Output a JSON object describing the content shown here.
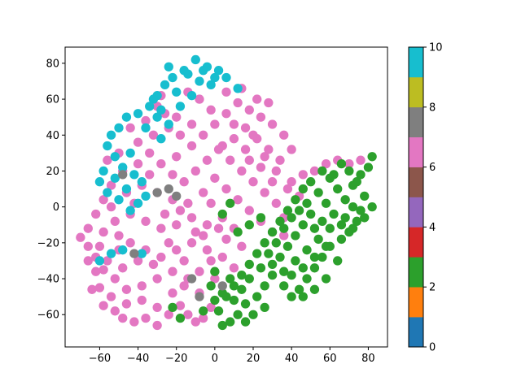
{
  "chart_data": {
    "type": "scatter",
    "title": "",
    "xlabel": "",
    "ylabel": "",
    "xlim": [
      -78,
      90
    ],
    "ylim": [
      -78,
      89
    ],
    "xticks": [
      -60,
      -40,
      -20,
      0,
      20,
      40,
      60,
      80
    ],
    "yticks": [
      -60,
      -40,
      -20,
      0,
      20,
      40,
      60,
      80
    ],
    "grid": false,
    "marker_size_data_units": 2.4,
    "colorbar": {
      "cmap": "tab10",
      "vmin": 0,
      "vmax": 10,
      "ticks": [
        0,
        2,
        4,
        6,
        8,
        10
      ],
      "colors": [
        "#1f77b4",
        "#ff7f0e",
        "#2ca02c",
        "#d62728",
        "#9467bd",
        "#8c564b",
        "#e377c2",
        "#7f7f7f",
        "#bcbd22",
        "#17becf"
      ]
    },
    "series": [
      {
        "class": 6,
        "color": "#e377c2",
        "points": [
          [
            -70,
            -17
          ],
          [
            -66,
            -22
          ],
          [
            -62,
            -28
          ],
          [
            -58,
            -35
          ],
          [
            -60,
            -45
          ],
          [
            -58,
            -55
          ],
          [
            -52,
            -58
          ],
          [
            -48,
            -62
          ],
          [
            -42,
            -64
          ],
          [
            -36,
            -62
          ],
          [
            -30,
            -66
          ],
          [
            -24,
            -60
          ],
          [
            -18,
            -55
          ],
          [
            -14,
            -60
          ],
          [
            -10,
            -64
          ],
          [
            -6,
            -62
          ],
          [
            -2,
            -56
          ],
          [
            -8,
            -48
          ],
          [
            -14,
            -40
          ],
          [
            -22,
            -36
          ],
          [
            -30,
            -40
          ],
          [
            -38,
            -44
          ],
          [
            -46,
            -46
          ],
          [
            -52,
            -40
          ],
          [
            -56,
            -30
          ],
          [
            -50,
            -24
          ],
          [
            -44,
            -20
          ],
          [
            -36,
            -24
          ],
          [
            -28,
            -28
          ],
          [
            -20,
            -24
          ],
          [
            -12,
            -20
          ],
          [
            -4,
            -24
          ],
          [
            4,
            -28
          ],
          [
            10,
            -34
          ],
          [
            14,
            -22
          ],
          [
            10,
            -12
          ],
          [
            4,
            -6
          ],
          [
            -4,
            -10
          ],
          [
            -12,
            -6
          ],
          [
            -20,
            -10
          ],
          [
            -28,
            -12
          ],
          [
            -36,
            -8
          ],
          [
            -44,
            -4
          ],
          [
            -52,
            -8
          ],
          [
            -58,
            -14
          ],
          [
            -62,
            -4
          ],
          [
            -58,
            4
          ],
          [
            -54,
            12
          ],
          [
            -48,
            20
          ],
          [
            -40,
            24
          ],
          [
            -34,
            30
          ],
          [
            -28,
            24
          ],
          [
            -22,
            18
          ],
          [
            -16,
            14
          ],
          [
            -10,
            20
          ],
          [
            -4,
            26
          ],
          [
            2,
            32
          ],
          [
            8,
            26
          ],
          [
            14,
            20
          ],
          [
            20,
            14
          ],
          [
            26,
            8
          ],
          [
            32,
            2
          ],
          [
            36,
            -6
          ],
          [
            30,
            -14
          ],
          [
            24,
            -8
          ],
          [
            18,
            -2
          ],
          [
            12,
            4
          ],
          [
            6,
            10
          ],
          [
            0,
            16
          ],
          [
            -6,
            8
          ],
          [
            -14,
            2
          ],
          [
            -22,
            4
          ],
          [
            -30,
            8
          ],
          [
            -38,
            12
          ],
          [
            -46,
            8
          ],
          [
            -54,
            0
          ],
          [
            -40,
            36
          ],
          [
            -32,
            40
          ],
          [
            -24,
            44
          ],
          [
            -18,
            40
          ],
          [
            -12,
            34
          ],
          [
            -6,
            40
          ],
          [
            0,
            46
          ],
          [
            6,
            52
          ],
          [
            12,
            58
          ],
          [
            18,
            54
          ],
          [
            24,
            50
          ],
          [
            30,
            46
          ],
          [
            36,
            40
          ],
          [
            40,
            32
          ],
          [
            34,
            26
          ],
          [
            28,
            32
          ],
          [
            22,
            38
          ],
          [
            16,
            44
          ],
          [
            10,
            38
          ],
          [
            4,
            34
          ],
          [
            -2,
            54
          ],
          [
            -8,
            60
          ],
          [
            -14,
            64
          ],
          [
            6,
            64
          ],
          [
            14,
            66
          ],
          [
            22,
            60
          ],
          [
            28,
            58
          ],
          [
            -20,
            50
          ],
          [
            -26,
            52
          ],
          [
            -30,
            56
          ],
          [
            -36,
            48
          ],
          [
            -44,
            44
          ],
          [
            -50,
            30
          ],
          [
            -56,
            26
          ],
          [
            40,
            14
          ],
          [
            46,
            18
          ],
          [
            52,
            20
          ],
          [
            58,
            24
          ],
          [
            64,
            26
          ],
          [
            70,
            24
          ],
          [
            76,
            26
          ],
          [
            44,
            6
          ],
          [
            38,
            10
          ],
          [
            30,
            14
          ],
          [
            24,
            22
          ],
          [
            18,
            26
          ],
          [
            -62,
            -36
          ],
          [
            -64,
            -46
          ],
          [
            -54,
            -50
          ],
          [
            -46,
            -54
          ],
          [
            -38,
            -52
          ],
          [
            -30,
            -56
          ],
          [
            -22,
            -48
          ],
          [
            -16,
            -44
          ],
          [
            -8,
            -36
          ],
          [
            0,
            -40
          ],
          [
            -2,
            -30
          ],
          [
            6,
            -18
          ],
          [
            -66,
            -12
          ],
          [
            -48,
            -34
          ],
          [
            -40,
            -30
          ],
          [
            -32,
            -32
          ],
          [
            -26,
            -4
          ],
          [
            -18,
            -2
          ],
          [
            -10,
            -14
          ],
          [
            -2,
            2
          ],
          [
            10,
            46
          ],
          [
            16,
            32
          ],
          [
            -34,
            18
          ],
          [
            -42,
            2
          ],
          [
            -50,
            -16
          ],
          [
            -24,
            -20
          ],
          [
            -16,
            -30
          ],
          [
            -6,
            -16
          ],
          [
            2,
            -12
          ],
          [
            -20,
            28
          ],
          [
            -12,
            46
          ],
          [
            -28,
            62
          ],
          [
            20,
            40
          ],
          [
            26,
            28
          ],
          [
            32,
            20
          ],
          [
            36,
            -16
          ],
          [
            -66,
            -30
          ],
          [
            -60,
            -22
          ]
        ]
      },
      {
        "class": 9,
        "color": "#17becf",
        "points": [
          [
            -10,
            82
          ],
          [
            -4,
            78
          ],
          [
            2,
            76
          ],
          [
            -16,
            76
          ],
          [
            -22,
            72
          ],
          [
            -26,
            68
          ],
          [
            -30,
            62
          ],
          [
            -34,
            56
          ],
          [
            -40,
            52
          ],
          [
            -46,
            50
          ],
          [
            -50,
            44
          ],
          [
            -54,
            40
          ],
          [
            -56,
            34
          ],
          [
            -52,
            28
          ],
          [
            -48,
            22
          ],
          [
            -42,
            18
          ],
          [
            -38,
            14
          ],
          [
            -36,
            6
          ],
          [
            -40,
            2
          ],
          [
            -44,
            -2
          ],
          [
            -50,
            4
          ],
          [
            -56,
            8
          ],
          [
            -60,
            14
          ],
          [
            -58,
            20
          ],
          [
            -30,
            50
          ],
          [
            -24,
            46
          ],
          [
            -18,
            56
          ],
          [
            -12,
            62
          ],
          [
            -8,
            70
          ],
          [
            -2,
            68
          ],
          [
            6,
            72
          ],
          [
            12,
            66
          ],
          [
            -20,
            64
          ],
          [
            -28,
            54
          ],
          [
            -36,
            44
          ],
          [
            -44,
            30
          ],
          [
            -52,
            16
          ],
          [
            -46,
            10
          ],
          [
            -28,
            38
          ],
          [
            -14,
            74
          ],
          [
            -6,
            76
          ],
          [
            -24,
            78
          ],
          [
            0,
            72
          ],
          [
            -32,
            60
          ],
          [
            -48,
            -24
          ],
          [
            -38,
            -26
          ],
          [
            -60,
            -30
          ],
          [
            -54,
            -26
          ]
        ]
      },
      {
        "class": 2,
        "color": "#2ca02c",
        "points": [
          [
            82,
            28
          ],
          [
            80,
            22
          ],
          [
            76,
            18
          ],
          [
            72,
            12
          ],
          [
            78,
            6
          ],
          [
            82,
            0
          ],
          [
            78,
            -6
          ],
          [
            72,
            -12
          ],
          [
            66,
            -18
          ],
          [
            60,
            -22
          ],
          [
            56,
            -28
          ],
          [
            52,
            -34
          ],
          [
            48,
            -40
          ],
          [
            44,
            -46
          ],
          [
            40,
            -50
          ],
          [
            36,
            -44
          ],
          [
            30,
            -38
          ],
          [
            26,
            -44
          ],
          [
            22,
            -50
          ],
          [
            16,
            -54
          ],
          [
            12,
            -60
          ],
          [
            8,
            -64
          ],
          [
            4,
            -66
          ],
          [
            2,
            -58
          ],
          [
            6,
            -50
          ],
          [
            10,
            -44
          ],
          [
            14,
            -38
          ],
          [
            18,
            -32
          ],
          [
            22,
            -26
          ],
          [
            26,
            -20
          ],
          [
            30,
            -14
          ],
          [
            34,
            -8
          ],
          [
            38,
            -2
          ],
          [
            42,
            4
          ],
          [
            46,
            10
          ],
          [
            50,
            14
          ],
          [
            54,
            8
          ],
          [
            58,
            2
          ],
          [
            62,
            -4
          ],
          [
            66,
            -10
          ],
          [
            70,
            -14
          ],
          [
            74,
            -8
          ],
          [
            68,
            4
          ],
          [
            64,
            10
          ],
          [
            60,
            16
          ],
          [
            56,
            20
          ],
          [
            50,
            -4
          ],
          [
            46,
            -10
          ],
          [
            42,
            -16
          ],
          [
            38,
            -22
          ],
          [
            34,
            -28
          ],
          [
            30,
            -32
          ],
          [
            36,
            -36
          ],
          [
            42,
            -30
          ],
          [
            48,
            -24
          ],
          [
            54,
            -18
          ],
          [
            60,
            -12
          ],
          [
            64,
            -30
          ],
          [
            58,
            -40
          ],
          [
            52,
            -46
          ],
          [
            46,
            -50
          ],
          [
            40,
            -38
          ],
          [
            46,
            -34
          ],
          [
            52,
            -28
          ],
          [
            58,
            -22
          ],
          [
            16,
            -64
          ],
          [
            20,
            -60
          ],
          [
            26,
            -56
          ],
          [
            10,
            -52
          ],
          [
            4,
            -48
          ],
          [
            -2,
            -44
          ],
          [
            0,
            -36
          ],
          [
            8,
            -40
          ],
          [
            14,
            -46
          ],
          [
            18,
            -40
          ],
          [
            24,
            -34
          ],
          [
            28,
            -26
          ],
          [
            32,
            -20
          ],
          [
            36,
            -12
          ],
          [
            40,
            -6
          ],
          [
            44,
            -2
          ],
          [
            48,
            2
          ],
          [
            52,
            -12
          ],
          [
            56,
            -8
          ],
          [
            74,
            14
          ],
          [
            70,
            20
          ],
          [
            66,
            24
          ],
          [
            62,
            18
          ],
          [
            76,
            -2
          ],
          [
            72,
            0
          ],
          [
            68,
            -6
          ],
          [
            24,
            -6
          ],
          [
            18,
            -10
          ],
          [
            12,
            -14
          ],
          [
            8,
            2
          ],
          [
            4,
            -4
          ],
          [
            -6,
            -58
          ],
          [
            -22,
            -56
          ],
          [
            -18,
            -62
          ],
          [
            0,
            -52
          ]
        ]
      },
      {
        "class": 7,
        "color": "#7f7f7f",
        "points": [
          [
            -24,
            10
          ],
          [
            -30,
            8
          ],
          [
            -20,
            6
          ],
          [
            -48,
            18
          ],
          [
            -42,
            -26
          ],
          [
            -12,
            -40
          ],
          [
            -8,
            -50
          ],
          [
            4,
            -44
          ]
        ]
      }
    ]
  }
}
